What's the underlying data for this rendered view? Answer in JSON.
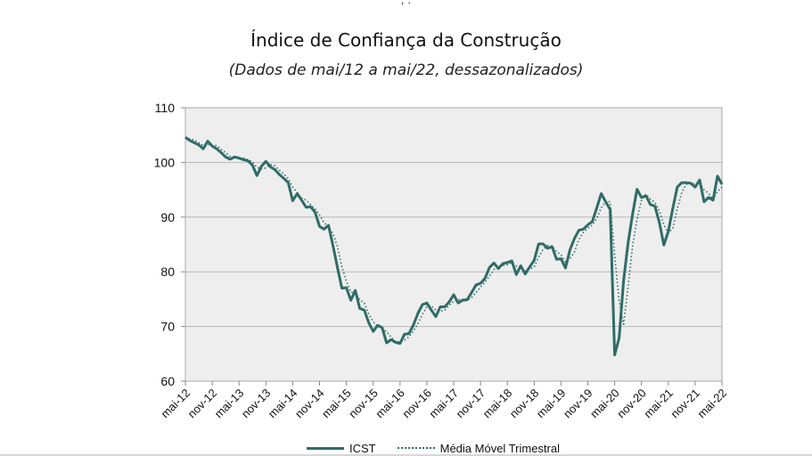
{
  "header_fragment": ", .",
  "chart_data": {
    "type": "line",
    "title": "Índice de Confiança da Construção",
    "subtitle": "(Dados de mai/12 a mai/22, dessazonalizados)",
    "ylim": [
      60,
      110
    ],
    "yticks": [
      "60",
      "70",
      "80",
      "90",
      "100",
      "110"
    ],
    "xlim": [
      "mai-12",
      "mai-22"
    ],
    "x_tick_labels": [
      "mai-12",
      "nov-12",
      "mai-13",
      "nov-13",
      "mai-14",
      "nov-14",
      "mai-15",
      "nov-15",
      "mai-16",
      "nov-16",
      "mai-17",
      "nov-17",
      "mai-18",
      "nov-18",
      "mai-19",
      "nov-19",
      "mai-20",
      "nov-20",
      "mai-21",
      "nov-21",
      "mai-22"
    ],
    "grid": "horizontal",
    "legend_position": "bottom",
    "colors": {
      "series": "#2f6c66",
      "plot_bg": "#eeeeee",
      "grid": "#b8b8b8"
    },
    "series": [
      {
        "name": "ICST",
        "style": "solid",
        "values": [
          104.6,
          104.0,
          103.6,
          103.2,
          102.5,
          103.9,
          103.0,
          102.5,
          101.8,
          101.0,
          100.6,
          101.0,
          100.8,
          100.5,
          100.3,
          99.5,
          97.6,
          99.3,
          100.2,
          99.2,
          98.7,
          97.8,
          97.1,
          96.3,
          93.0,
          94.3,
          93.1,
          91.8,
          91.9,
          90.9,
          88.3,
          87.8,
          88.5,
          84.8,
          80.8,
          77.0,
          77.1,
          74.8,
          76.6,
          73.3,
          73.0,
          70.7,
          69.1,
          70.2,
          69.8,
          67.0,
          67.6,
          67.1,
          66.9,
          68.6,
          68.7,
          70.3,
          72.4,
          74.0,
          74.3,
          73.0,
          71.8,
          73.6,
          73.6,
          74.5,
          75.8,
          74.3,
          74.8,
          74.9,
          76.2,
          77.6,
          77.9,
          78.8,
          80.8,
          81.6,
          80.6,
          81.5,
          81.7,
          82.0,
          79.5,
          81.1,
          79.6,
          80.9,
          82.1,
          85.1,
          85.1,
          84.3,
          84.6,
          82.3,
          82.4,
          80.7,
          84.0,
          86.1,
          87.6,
          87.8,
          88.6,
          89.2,
          91.7,
          94.3,
          92.8,
          91.4,
          64.8,
          67.9,
          78.4,
          85.3,
          90.5,
          95.1,
          93.6,
          93.9,
          92.3,
          92.0,
          89.0,
          84.9,
          87.4,
          91.6,
          95.5,
          96.3,
          96.3,
          96.2,
          95.5,
          96.8,
          92.8,
          93.6,
          93.1,
          97.5,
          96.0
        ]
      },
      {
        "name": "Média Móvel Trimestral",
        "style": "dotted",
        "values": [
          104.6,
          104.3,
          104.1,
          103.6,
          103.1,
          103.3,
          103.1,
          103.1,
          102.4,
          101.8,
          101.1,
          100.9,
          100.8,
          100.8,
          100.5,
          100.1,
          99.1,
          98.8,
          99.0,
          99.6,
          99.4,
          98.6,
          97.9,
          97.1,
          95.5,
          94.5,
          93.5,
          93.1,
          92.3,
          91.5,
          90.4,
          89.0,
          88.2,
          87.0,
          84.7,
          80.9,
          78.3,
          76.3,
          76.2,
          74.9,
          74.3,
          72.3,
          70.9,
          70.0,
          69.7,
          69.0,
          68.1,
          67.2,
          67.2,
          67.5,
          68.1,
          69.2,
          70.5,
          72.2,
          73.6,
          73.8,
          73.0,
          72.8,
          73.0,
          73.9,
          74.6,
          74.9,
          75.0,
          74.7,
          75.3,
          76.2,
          77.2,
          78.1,
          79.2,
          80.4,
          81.0,
          81.2,
          81.3,
          81.7,
          81.1,
          80.9,
          80.1,
          80.5,
          80.9,
          82.7,
          84.1,
          84.8,
          84.7,
          83.7,
          83.1,
          81.8,
          82.4,
          83.6,
          85.9,
          87.2,
          88.0,
          88.5,
          89.8,
          91.7,
          92.9,
          92.8,
          83.0,
          74.7,
          70.4,
          77.2,
          84.7,
          89.6,
          93.1,
          94.2,
          93.3,
          92.7,
          91.1,
          88.6,
          87.1,
          88.0,
          91.5,
          94.5,
          96.0,
          96.3,
          96.0,
          96.2,
          95.0,
          94.4,
          93.2,
          94.7,
          95.5
        ]
      }
    ]
  }
}
